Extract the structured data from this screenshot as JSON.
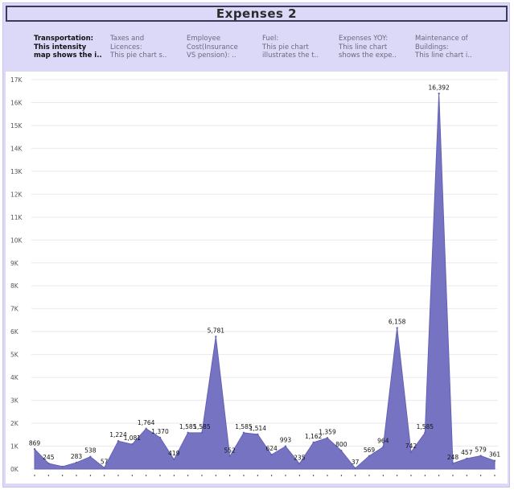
{
  "header": {
    "title": "Expenses 2"
  },
  "tabs": [
    {
      "lines": [
        "Transportation:",
        "This intensity",
        "map shows the i.."
      ],
      "active": true
    },
    {
      "lines": [
        "Taxes and",
        "Licences:",
        "This pie chart s.."
      ],
      "active": false
    },
    {
      "lines": [
        "Employee",
        "Cost(Insurance",
        "VS pension):     .."
      ],
      "active": false
    },
    {
      "lines": [
        "Fuel:",
        "This pie chart",
        "illustrates the t.."
      ],
      "active": false
    },
    {
      "lines": [
        "Expenses YOY:",
        "This line chart",
        "shows the expe.."
      ],
      "active": false
    },
    {
      "lines": [
        "Maintenance of",
        "Buildings:",
        "This line chart i.."
      ],
      "active": false
    }
  ],
  "colors": {
    "area_fill": "#7674c2",
    "area_stroke": "#6361b3",
    "grid": "#e9e9ef",
    "frame": "#dcd8f8"
  },
  "chart_data": {
    "type": "area",
    "ylim": [
      0,
      17000
    ],
    "y_ticks": [
      "0K",
      "1K",
      "2K",
      "3K",
      "4K",
      "5K",
      "6K",
      "7K",
      "8K",
      "9K",
      "10K",
      "11K",
      "12K",
      "13K",
      "14K",
      "15K",
      "16K",
      "17K"
    ],
    "x_tick_count": 34,
    "grid": true,
    "values": [
      869,
      245,
      108,
      283,
      538,
      57,
      1224,
      1081,
      1764,
      1370,
      419,
      1585,
      1585,
      5781,
      552,
      1585,
      1514,
      624,
      993,
      235,
      1162,
      1359,
      800,
      37,
      569,
      964,
      6158,
      742,
      1585,
      16392,
      248,
      457,
      579,
      361
    ],
    "labels": [
      "869",
      "245",
      "",
      "283",
      "538",
      "57",
      "1,224",
      "1,081",
      "1,764",
      "1,370",
      "419",
      "1,585",
      "1,585",
      "5,781",
      "552",
      "1,585",
      "1,514",
      "624",
      "993",
      "235",
      "1,162",
      "1,359",
      "800",
      "37",
      "569",
      "964",
      "6,158",
      "742",
      "1,585",
      "16,392",
      "248",
      "457",
      "579",
      "361"
    ]
  }
}
